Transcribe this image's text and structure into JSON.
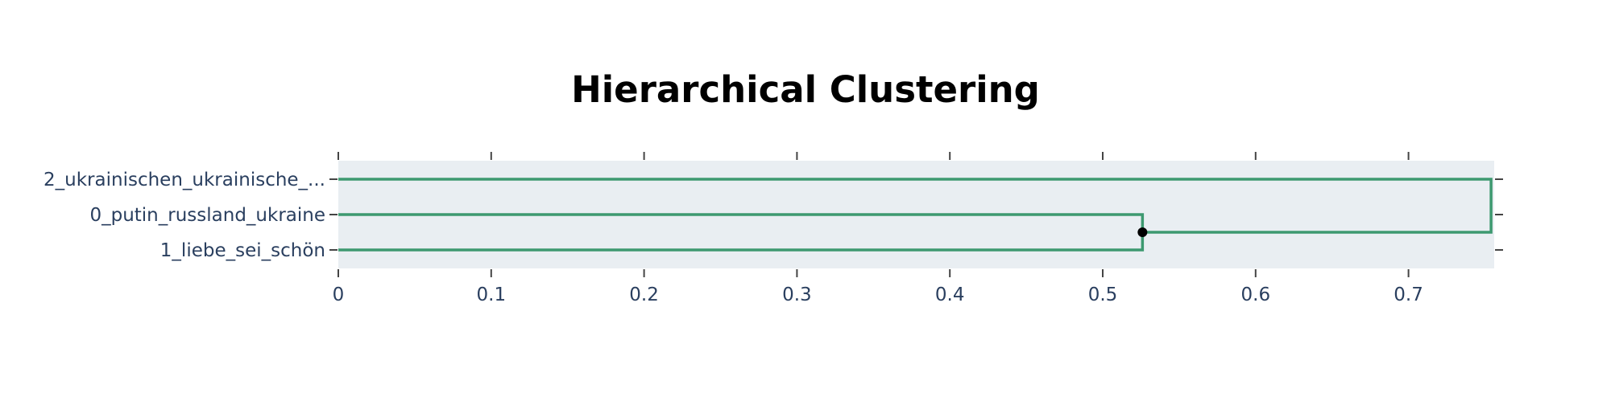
{
  "chart_data": {
    "type": "dendrogram",
    "title": "Hierarchical Clustering",
    "orientation": "horizontal",
    "xlabel": "",
    "ylabel": "",
    "xlim": [
      0,
      0.755
    ],
    "x_ticks": [
      0,
      0.1,
      0.2,
      0.3,
      0.4,
      0.5,
      0.6,
      0.7
    ],
    "x_tick_labels": [
      "0",
      "0.1",
      "0.2",
      "0.3",
      "0.4",
      "0.5",
      "0.6",
      "0.7"
    ],
    "leaves": [
      "2_ukrainischen_ukrainische_...",
      "0_putin_russland_ukraine",
      "1_liebe_sei_schön"
    ],
    "merges": [
      {
        "children": [
          "0_putin_russland_ukraine",
          "1_liebe_sei_schön"
        ],
        "distance": 0.526
      },
      {
        "children": [
          "2_ukrainischen_ukrainische_...",
          "cluster-0-1"
        ],
        "distance": 0.754
      }
    ],
    "grid": false,
    "legend": "none",
    "colors": {
      "link": "#3d9970",
      "plot_background": "#e9eef2",
      "tick_text": "#2a3f5f",
      "title_text": "#000000",
      "node_marker": "#000000",
      "tick_mark": "#444444"
    }
  }
}
